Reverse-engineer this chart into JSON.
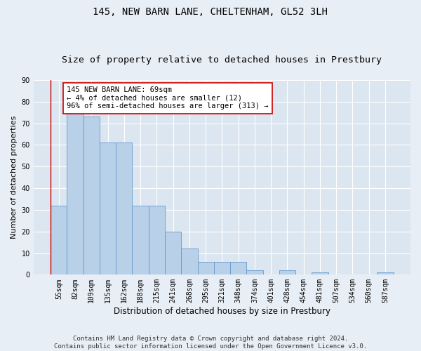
{
  "title": "145, NEW BARN LANE, CHELTENHAM, GL52 3LH",
  "subtitle": "Size of property relative to detached houses in Prestbury",
  "xlabel": "Distribution of detached houses by size in Prestbury",
  "ylabel": "Number of detached properties",
  "bar_color": "#b8d0e8",
  "bar_edge_color": "#6699cc",
  "background_color": "#e8eef5",
  "plot_background_color": "#dce6f0",
  "grid_color": "#ffffff",
  "annotation_line_color": "#cc0000",
  "categories": [
    "55sqm",
    "82sqm",
    "109sqm",
    "135sqm",
    "162sqm",
    "188sqm",
    "215sqm",
    "241sqm",
    "268sqm",
    "295sqm",
    "321sqm",
    "348sqm",
    "374sqm",
    "401sqm",
    "428sqm",
    "454sqm",
    "481sqm",
    "507sqm",
    "534sqm",
    "560sqm",
    "587sqm"
  ],
  "values": [
    32,
    75,
    73,
    61,
    61,
    32,
    32,
    20,
    12,
    6,
    6,
    6,
    2,
    0,
    2,
    0,
    1,
    0,
    0,
    0,
    1
  ],
  "ylim": [
    0,
    90
  ],
  "yticks": [
    0,
    10,
    20,
    30,
    40,
    50,
    60,
    70,
    80,
    90
  ],
  "annotation_box_text": "145 NEW BARN LANE: 69sqm\n← 4% of detached houses are smaller (12)\n96% of semi-detached houses are larger (313) →",
  "footer": "Contains HM Land Registry data © Crown copyright and database right 2024.\nContains public sector information licensed under the Open Government Licence v3.0.",
  "title_fontsize": 10,
  "subtitle_fontsize": 9.5,
  "xlabel_fontsize": 8.5,
  "ylabel_fontsize": 8,
  "tick_fontsize": 7,
  "annotation_fontsize": 7.5,
  "footer_fontsize": 6.5
}
